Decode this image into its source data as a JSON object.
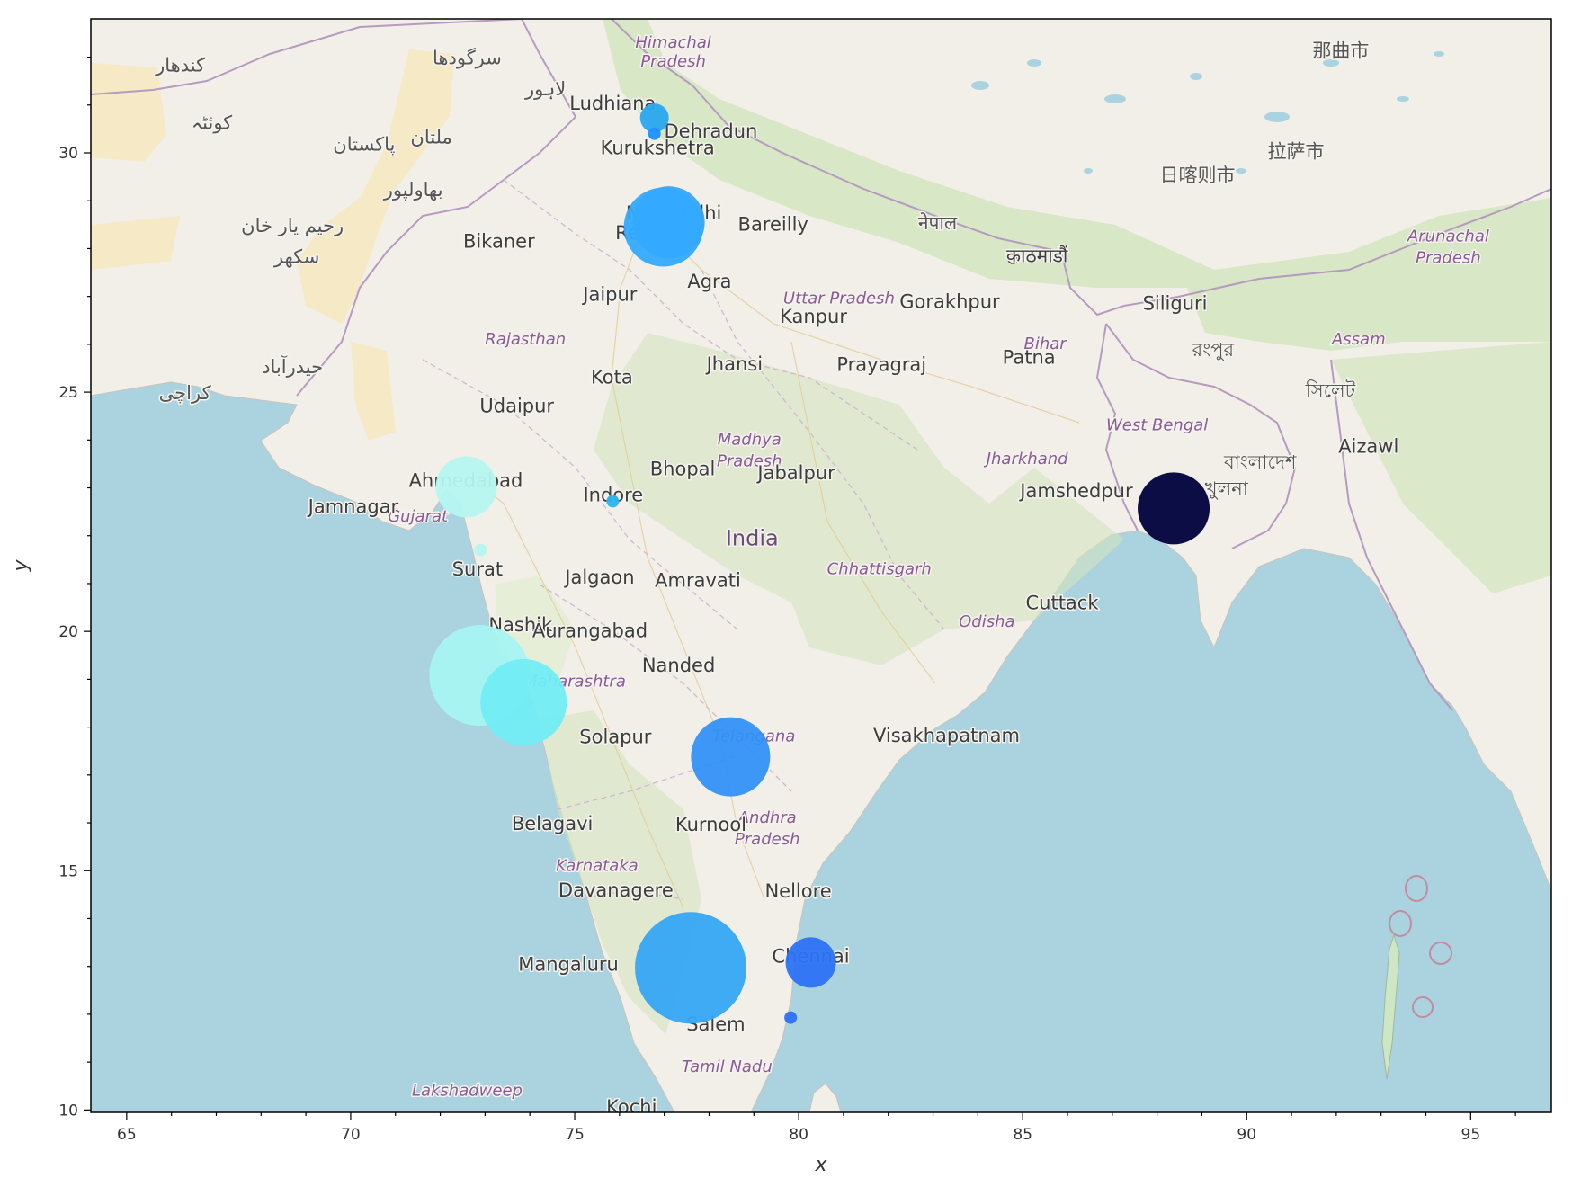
{
  "chart_data": {
    "type": "scatter",
    "xlabel": "x",
    "ylabel": "y",
    "xlim": [
      64.2,
      96.8
    ],
    "ylim": [
      9.95,
      32.8
    ],
    "xticks": [
      65,
      70,
      75,
      80,
      85,
      90,
      95
    ],
    "yticks": [
      10,
      15,
      20,
      25,
      30
    ],
    "xtick_labels": [
      "65",
      "70",
      "75",
      "80",
      "85",
      "90",
      "95"
    ],
    "ytick_labels": [
      "10",
      "15",
      "20",
      "25",
      "30"
    ],
    "grid": false,
    "basemap": "OpenStreetMap",
    "points": [
      {
        "x": 76.78,
        "y": 30.73,
        "size": 16,
        "color": "#29a8ef"
      },
      {
        "x": 76.78,
        "y": 30.4,
        "size": 7,
        "color": "#1e90ff"
      },
      {
        "x": 77.1,
        "y": 28.55,
        "size": 40,
        "color": "#38a4f7"
      },
      {
        "x": 76.98,
        "y": 28.45,
        "size": 44,
        "color": "#33aaff"
      },
      {
        "x": 72.58,
        "y": 23.02,
        "size": 34,
        "color": "#b5f6f0"
      },
      {
        "x": 72.9,
        "y": 21.7,
        "size": 7,
        "color": "#b5f6f0"
      },
      {
        "x": 75.85,
        "y": 22.72,
        "size": 7,
        "color": "#2ab4ee"
      },
      {
        "x": 72.88,
        "y": 19.08,
        "size": 56,
        "color": "#a7f4f2"
      },
      {
        "x": 73.86,
        "y": 18.52,
        "size": 48,
        "color": "#72ecf4"
      },
      {
        "x": 78.48,
        "y": 17.38,
        "size": 44,
        "color": "#3391f7"
      },
      {
        "x": 88.37,
        "y": 22.57,
        "size": 40,
        "color": "#00003d"
      },
      {
        "x": 77.59,
        "y": 12.97,
        "size": 62,
        "color": "#35a6f6"
      },
      {
        "x": 80.27,
        "y": 13.08,
        "size": 28,
        "color": "#2d72f6"
      },
      {
        "x": 79.82,
        "y": 11.93,
        "size": 7,
        "color": "#2d6ff6"
      }
    ]
  },
  "map_labels": {
    "cities": [
      {
        "text": "Ludhiana",
        "lon": 75.85,
        "lat": 30.9
      },
      {
        "text": "Dehradun",
        "lon": 78.04,
        "lat": 30.32
      },
      {
        "text": "Kurukshetra",
        "lon": 76.85,
        "lat": 29.97
      },
      {
        "text": "New Delhi",
        "lon": 77.21,
        "lat": 28.61
      },
      {
        "text": "Bikaner",
        "lon": 73.31,
        "lat": 28.02
      },
      {
        "text": "Rewari",
        "lon": 76.62,
        "lat": 28.2
      },
      {
        "text": "Bareilly",
        "lon": 79.43,
        "lat": 28.37
      },
      {
        "text": "Jaipur",
        "lon": 75.79,
        "lat": 26.91
      },
      {
        "text": "Agra",
        "lon": 78.01,
        "lat": 27.18
      },
      {
        "text": "Gorakhpur",
        "lon": 83.37,
        "lat": 26.76
      },
      {
        "text": "Kanpur",
        "lon": 80.33,
        "lat": 26.45
      },
      {
        "text": "Siliguri",
        "lon": 88.4,
        "lat": 26.72
      },
      {
        "text": "Prayagraj",
        "lon": 81.85,
        "lat": 25.44
      },
      {
        "text": "Kota",
        "lon": 75.83,
        "lat": 25.18
      },
      {
        "text": "Patna",
        "lon": 85.14,
        "lat": 25.59
      },
      {
        "text": "Jhansi",
        "lon": 78.57,
        "lat": 25.45
      },
      {
        "text": "Udaipur",
        "lon": 73.71,
        "lat": 24.58
      },
      {
        "text": "Aizawl",
        "lon": 92.72,
        "lat": 23.73
      },
      {
        "text": "Bhopal",
        "lon": 77.41,
        "lat": 23.26
      },
      {
        "text": "Ahmedabad",
        "lon": 72.57,
        "lat": 23.02
      },
      {
        "text": "Jamnagar",
        "lon": 70.06,
        "lat": 22.47
      },
      {
        "text": "Jabalpur",
        "lon": 79.95,
        "lat": 23.18
      },
      {
        "text": "Jamshedpur",
        "lon": 86.2,
        "lat": 22.8
      },
      {
        "text": "Indore",
        "lon": 75.86,
        "lat": 22.72
      },
      {
        "text": "India",
        "lon": 78.96,
        "lat": 21.8
      },
      {
        "text": "Jalgaon",
        "lon": 75.56,
        "lat": 21.0
      },
      {
        "text": "Surat",
        "lon": 72.83,
        "lat": 21.17
      },
      {
        "text": "Amravati",
        "lon": 77.75,
        "lat": 20.93
      },
      {
        "text": "Cuttack",
        "lon": 85.88,
        "lat": 20.46
      },
      {
        "text": "Nashik",
        "lon": 73.79,
        "lat": 20.0
      },
      {
        "text": "Aurangabad",
        "lon": 75.34,
        "lat": 19.88
      },
      {
        "text": "Nanded",
        "lon": 77.32,
        "lat": 19.16
      },
      {
        "text": "Visakhapatnam",
        "lon": 83.3,
        "lat": 17.69
      },
      {
        "text": "Solapur",
        "lon": 75.91,
        "lat": 17.66
      },
      {
        "text": "Belagavi",
        "lon": 74.5,
        "lat": 15.85
      },
      {
        "text": "Kurnool",
        "lon": 78.04,
        "lat": 15.83
      },
      {
        "text": "Davanagere",
        "lon": 75.92,
        "lat": 14.46
      },
      {
        "text": "Nellore",
        "lon": 79.99,
        "lat": 14.44
      },
      {
        "text": "Mangaluru",
        "lon": 74.86,
        "lat": 12.91
      },
      {
        "text": "Chennai",
        "lon": 80.27,
        "lat": 13.08
      },
      {
        "text": "Salem",
        "lon": 78.15,
        "lat": 11.66
      },
      {
        "text": "Kochi",
        "lon": 76.27,
        "lat": 9.93
      },
      {
        "text": "काठमाडौं",
        "lon": 85.32,
        "lat": 27.72
      }
    ],
    "states": [
      {
        "text": "Himachal",
        "lon": 77.2,
        "lat": 32.2
      },
      {
        "text": "Pradesh",
        "lon": 77.2,
        "lat": 31.8
      },
      {
        "text": "Rajasthan",
        "lon": 73.9,
        "lat": 26.0
      },
      {
        "text": "Uttar Pradesh",
        "lon": 80.9,
        "lat": 26.85
      },
      {
        "text": "Bihar",
        "lon": 85.5,
        "lat": 25.9
      },
      {
        "text": "Assam",
        "lon": 92.5,
        "lat": 26.0
      },
      {
        "text": "West Bengal",
        "lon": 88.0,
        "lat": 24.2
      },
      {
        "text": "Madhya",
        "lon": 78.9,
        "lat": 23.9
      },
      {
        "text": "Pradesh",
        "lon": 78.9,
        "lat": 23.45
      },
      {
        "text": "Jharkhand",
        "lon": 85.1,
        "lat": 23.5
      },
      {
        "text": "Gujarat",
        "lon": 71.5,
        "lat": 22.3
      },
      {
        "text": "Chhattisgarh",
        "lon": 81.8,
        "lat": 21.2
      },
      {
        "text": "Odisha",
        "lon": 84.2,
        "lat": 20.1
      },
      {
        "text": "Maharashtra",
        "lon": 75.0,
        "lat": 18.85
      },
      {
        "text": "Telangana",
        "lon": 79.0,
        "lat": 17.7
      },
      {
        "text": "Andhra",
        "lon": 79.3,
        "lat": 16.0
      },
      {
        "text": "Pradesh",
        "lon": 79.3,
        "lat": 15.55
      },
      {
        "text": "Karnataka",
        "lon": 75.5,
        "lat": 15.0
      },
      {
        "text": "Tamil Nadu",
        "lon": 78.4,
        "lat": 10.8
      },
      {
        "text": "Lakshadweep",
        "lon": 72.6,
        "lat": 10.3
      },
      {
        "text": "Arunachal",
        "lon": 94.5,
        "lat": 28.15
      },
      {
        "text": "Pradesh",
        "lon": 94.5,
        "lat": 27.7
      }
    ],
    "foreign": [
      {
        "text": "کندهار",
        "lon": 66.2,
        "lat": 31.7
      },
      {
        "text": "سرگودھا",
        "lon": 72.6,
        "lat": 31.85
      },
      {
        "text": "لاہور",
        "lon": 74.35,
        "lat": 31.2
      },
      {
        "text": "کوئٹہ",
        "lon": 66.9,
        "lat": 30.5
      },
      {
        "text": "پاکستان",
        "lon": 70.3,
        "lat": 30.05
      },
      {
        "text": "ملتان",
        "lon": 71.8,
        "lat": 30.2
      },
      {
        "text": "بھاولپور",
        "lon": 71.4,
        "lat": 29.1
      },
      {
        "text": "رحیم یار خان",
        "lon": 68.7,
        "lat": 28.35
      },
      {
        "text": "سکھر",
        "lon": 68.8,
        "lat": 27.7
      },
      {
        "text": "حیدرآباد",
        "lon": 68.7,
        "lat": 25.4
      },
      {
        "text": "کراچی",
        "lon": 66.3,
        "lat": 24.85
      },
      {
        "text": "नेपाल",
        "lon": 83.1,
        "lat": 28.4
      },
      {
        "text": "那曲市",
        "lon": 92.1,
        "lat": 32.0
      },
      {
        "text": "日喀则市",
        "lon": 88.9,
        "lat": 29.4
      },
      {
        "text": "拉萨市",
        "lon": 91.1,
        "lat": 29.9
      },
      {
        "text": "সিলেট",
        "lon": 91.87,
        "lat": 24.9
      },
      {
        "text": "রংপুর",
        "lon": 89.25,
        "lat": 25.75
      },
      {
        "text": "বাংলাদেশ",
        "lon": 90.3,
        "lat": 23.4
      },
      {
        "text": "খুলনা",
        "lon": 89.55,
        "lat": 22.85
      }
    ]
  }
}
